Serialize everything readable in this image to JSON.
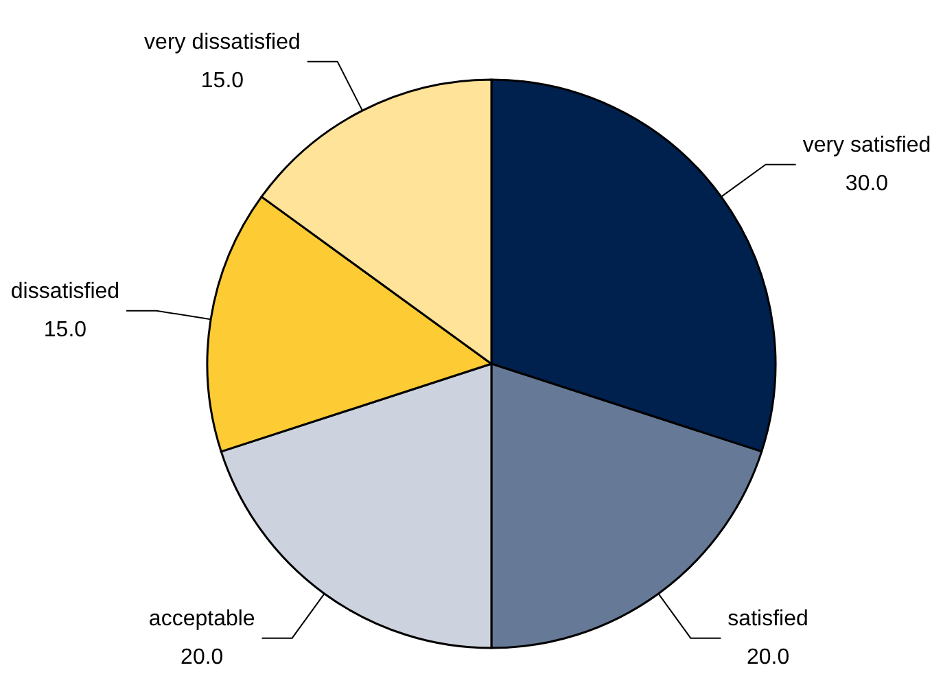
{
  "chart_data": {
    "type": "pie",
    "categories": [
      "very satisfied",
      "satisfied",
      "acceptable",
      "dissatisfied",
      "very dissatisfied"
    ],
    "values": [
      30,
      20,
      20,
      15,
      15
    ],
    "value_labels": [
      "30.0",
      "20.0",
      "20.0",
      "15.0",
      "15.0"
    ],
    "colors": [
      "#00204e",
      "#667a97",
      "#cdd3de",
      "#fdcb33",
      "#fee398"
    ],
    "legend": false
  }
}
